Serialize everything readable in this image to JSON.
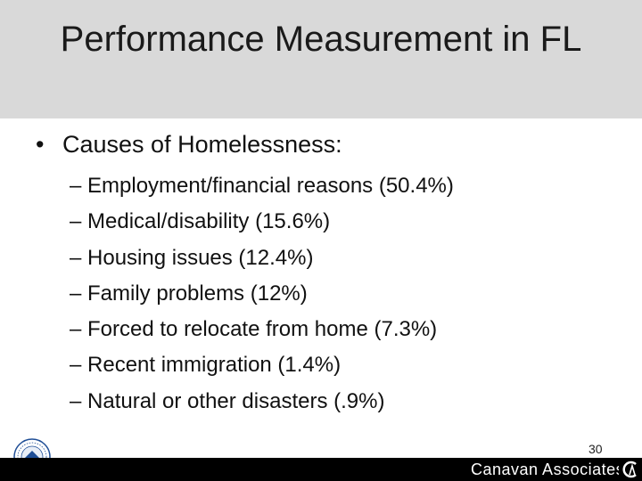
{
  "slide": {
    "title": "Performance Measurement in FL",
    "bullet": {
      "marker": "•",
      "text": "Causes of Homelessness:"
    },
    "sub_bullets": [
      "– Employment/financial reasons (50.4%)",
      "– Medical/disability (15.6%)",
      "– Housing issues (12.4%)",
      "– Family problems (12%)",
      "– Forced to relocate from home (7.3%)",
      "– Recent immigration (1.4%)",
      "– Natural or other disasters (.9%)"
    ],
    "page_number": "30"
  },
  "footer": {
    "brand": "Canavan Associates",
    "logo_icon": "ca-logo-icon",
    "seal_icon": "hud-seal-icon"
  },
  "colors": {
    "title_band": "#d9d9d9",
    "footer_bar": "#000000",
    "text": "#111111",
    "seal_blue": "#1f4e96",
    "seal_green": "#3c8c3c"
  }
}
